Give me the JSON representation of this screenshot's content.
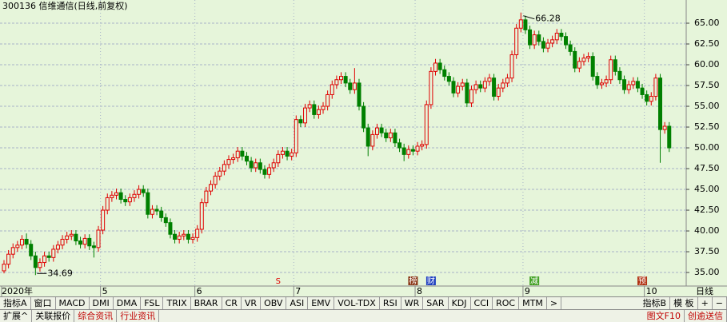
{
  "chart_data": {
    "type": "candlestick",
    "title": "300136 信维通信(日线,前复权)",
    "categories": [
      "2020年",
      null,
      null,
      null,
      null,
      null,
      null,
      null,
      null,
      null,
      null,
      null,
      null,
      null,
      null,
      null,
      null,
      null,
      null,
      null,
      null,
      null,
      "5",
      null,
      null,
      null,
      null,
      null,
      null,
      null,
      null,
      null,
      null,
      null,
      null,
      null,
      null,
      null,
      null,
      null,
      null,
      null,
      null,
      "6",
      null,
      null,
      null,
      null,
      null,
      null,
      null,
      null,
      null,
      null,
      null,
      null,
      null,
      null,
      null,
      null,
      null,
      null,
      null,
      null,
      null,
      "7",
      null,
      null,
      null,
      null,
      null,
      null,
      null,
      null,
      null,
      null,
      null,
      null,
      null,
      null,
      null,
      null,
      null,
      null,
      null,
      null,
      null,
      null,
      null,
      null,
      null,
      null,
      "8",
      null,
      null,
      null,
      null,
      null,
      null,
      null,
      null,
      null,
      null,
      null,
      null,
      null,
      null,
      null,
      null,
      null,
      null,
      null,
      null,
      null,
      null,
      null,
      "9",
      null,
      null,
      null,
      null,
      null,
      null,
      null,
      null,
      null,
      null,
      null,
      null,
      null,
      null,
      null,
      null,
      null,
      null,
      null,
      null,
      null,
      null,
      null,
      null,
      null,
      null,
      "10",
      null,
      null,
      null,
      null,
      null
    ],
    "open": [
      35.2,
      36.0,
      37.2,
      38.0,
      38.3,
      39.0,
      38.4,
      37.0,
      35.6,
      36.2,
      37.0,
      36.8,
      37.8,
      38.3,
      39.0,
      39.4,
      39.6,
      38.8,
      38.4,
      39.1,
      38.2,
      38.0,
      40.1,
      42.5,
      44.0,
      44.3,
      44.6,
      43.8,
      43.5,
      44.0,
      44.4,
      45.0,
      44.6,
      42.0,
      42.6,
      42.4,
      41.6,
      41.0,
      39.6,
      39.0,
      39.4,
      39.6,
      39.0,
      39.2,
      40.2,
      43.4,
      44.8,
      45.6,
      46.6,
      47.2,
      48.0,
      48.6,
      48.8,
      49.6,
      49.0,
      48.4,
      47.6,
      48.2,
      47.4,
      46.8,
      47.6,
      48.2,
      49.2,
      49.6,
      49.0,
      49.4,
      53.4,
      53.0,
      54.8,
      55.2,
      54.0,
      54.6,
      55.0,
      56.4,
      57.6,
      58.2,
      58.6,
      57.8,
      57.0,
      57.8,
      55.0,
      52.4,
      50.2,
      51.6,
      52.4,
      51.8,
      51.2,
      51.8,
      50.6,
      50.0,
      49.2,
      49.8,
      49.6,
      50.2,
      50.4,
      55.2,
      59.2,
      60.2,
      59.4,
      58.6,
      58.0,
      56.6,
      57.4,
      57.8,
      55.4,
      57.0,
      57.6,
      57.2,
      58.0,
      58.4,
      56.2,
      57.2,
      57.8,
      58.4,
      61.2,
      64.4,
      65.4,
      64.2,
      62.4,
      63.6,
      62.8,
      62.0,
      62.6,
      63.0,
      63.8,
      63.4,
      62.4,
      61.6,
      59.6,
      60.4,
      60.8,
      61.0,
      58.6,
      57.6,
      57.8,
      58.2,
      60.6,
      59.2,
      58.2,
      57.0,
      57.6,
      58.0,
      57.2,
      56.4,
      55.6,
      56.2,
      58.4,
      52.2,
      52.6
    ],
    "high": [
      36.5,
      37.7,
      38.5,
      38.8,
      39.5,
      39.7,
      38.9,
      37.5,
      36.7,
      37.5,
      37.5,
      38.3,
      38.8,
      39.5,
      39.9,
      40.1,
      40.1,
      39.3,
      39.6,
      39.6,
      38.7,
      40.6,
      43.0,
      44.5,
      44.8,
      45.1,
      45.1,
      44.3,
      44.5,
      44.9,
      45.5,
      45.5,
      45.1,
      43.1,
      43.1,
      42.9,
      42.1,
      41.5,
      40.1,
      39.9,
      40.1,
      40.1,
      39.7,
      40.7,
      43.9,
      45.3,
      46.1,
      47.1,
      47.7,
      48.5,
      49.1,
      49.3,
      50.1,
      50.1,
      49.5,
      48.9,
      48.7,
      48.7,
      47.9,
      48.1,
      48.7,
      49.7,
      50.1,
      50.1,
      49.9,
      53.9,
      53.9,
      55.3,
      55.7,
      55.7,
      55.1,
      55.5,
      56.9,
      58.1,
      58.7,
      59.1,
      59.1,
      58.3,
      59.6,
      58.3,
      55.5,
      52.9,
      52.1,
      52.9,
      52.9,
      52.3,
      52.3,
      52.3,
      51.1,
      50.5,
      50.3,
      50.3,
      50.7,
      50.9,
      55.7,
      59.7,
      60.7,
      60.7,
      59.9,
      59.1,
      58.5,
      57.9,
      58.3,
      58.3,
      57.5,
      58.1,
      58.1,
      58.5,
      58.9,
      58.9,
      57.7,
      58.3,
      58.9,
      61.7,
      64.9,
      66.28,
      65.9,
      64.7,
      64.1,
      64.1,
      63.3,
      63.1,
      63.5,
      64.3,
      64.3,
      63.9,
      62.9,
      62.1,
      60.9,
      61.3,
      61.5,
      61.5,
      59.1,
      58.3,
      58.7,
      61.1,
      61.1,
      59.7,
      58.7,
      58.1,
      58.5,
      58.5,
      57.7,
      56.9,
      56.7,
      58.9,
      58.9,
      53.1,
      53.1
    ],
    "low": [
      34.9,
      35.5,
      36.7,
      37.5,
      37.8,
      37.9,
      36.5,
      34.69,
      35.1,
      35.7,
      36.3,
      36.3,
      37.3,
      37.8,
      38.5,
      38.9,
      38.3,
      37.9,
      37.9,
      37.7,
      36.8,
      37.5,
      39.6,
      42.0,
      43.5,
      43.8,
      43.3,
      43.0,
      43.0,
      43.5,
      43.9,
      44.1,
      41.5,
      41.5,
      41.9,
      41.1,
      40.5,
      39.1,
      38.5,
      38.5,
      38.9,
      38.5,
      38.5,
      38.7,
      39.7,
      42.9,
      44.3,
      45.1,
      46.1,
      46.7,
      47.5,
      48.1,
      48.3,
      48.5,
      47.9,
      47.1,
      47.1,
      46.9,
      46.3,
      46.3,
      47.1,
      47.7,
      48.7,
      48.5,
      48.5,
      48.9,
      52.5,
      52.5,
      54.3,
      53.5,
      53.5,
      54.1,
      54.5,
      55.9,
      57.1,
      57.7,
      57.3,
      56.5,
      56.5,
      54.5,
      51.9,
      49.0,
      49.7,
      51.1,
      51.3,
      50.7,
      50.7,
      50.1,
      49.5,
      48.4,
      48.7,
      49.1,
      49.1,
      49.7,
      49.9,
      54.7,
      58.7,
      58.9,
      58.1,
      57.5,
      56.1,
      56.1,
      56.9,
      54.9,
      54.9,
      56.5,
      56.7,
      56.7,
      57.5,
      55.7,
      55.7,
      56.7,
      57.3,
      57.9,
      60.7,
      63.9,
      63.7,
      61.9,
      61.9,
      62.3,
      61.5,
      61.5,
      62.1,
      62.5,
      62.9,
      61.9,
      61.1,
      59.1,
      59.1,
      59.9,
      60.3,
      58.1,
      57.1,
      57.1,
      57.3,
      57.7,
      58.7,
      57.7,
      56.5,
      56.5,
      57.1,
      56.7,
      55.9,
      55.1,
      55.1,
      55.7,
      48.2,
      51.7,
      49.5
    ],
    "close": [
      36.0,
      37.2,
      38.0,
      38.3,
      39.0,
      38.4,
      37.0,
      35.6,
      36.2,
      37.0,
      36.8,
      37.8,
      38.3,
      39.0,
      39.4,
      39.6,
      38.8,
      38.4,
      39.1,
      38.2,
      38.0,
      40.1,
      42.5,
      44.0,
      44.3,
      44.6,
      43.8,
      43.5,
      44.0,
      44.4,
      45.0,
      44.6,
      42.0,
      42.6,
      42.4,
      41.6,
      41.0,
      39.6,
      39.0,
      39.4,
      39.6,
      39.0,
      39.2,
      40.2,
      43.4,
      44.8,
      45.6,
      46.6,
      47.2,
      48.0,
      48.6,
      48.8,
      49.6,
      49.0,
      48.4,
      47.6,
      48.2,
      47.4,
      46.8,
      47.6,
      48.2,
      49.2,
      49.6,
      49.0,
      49.4,
      53.4,
      53.0,
      54.8,
      55.2,
      54.0,
      54.6,
      55.0,
      56.4,
      57.6,
      58.2,
      58.6,
      57.8,
      57.0,
      57.8,
      55.0,
      52.4,
      50.2,
      51.6,
      52.4,
      51.8,
      51.2,
      51.8,
      50.6,
      50.0,
      49.2,
      49.8,
      49.6,
      50.2,
      50.4,
      55.2,
      59.2,
      60.2,
      59.4,
      58.6,
      58.0,
      56.6,
      57.4,
      57.8,
      55.4,
      57.0,
      57.6,
      57.2,
      58.0,
      58.4,
      56.2,
      57.2,
      57.8,
      58.4,
      61.2,
      64.4,
      65.4,
      64.2,
      62.4,
      63.6,
      62.8,
      62.0,
      62.6,
      63.0,
      63.8,
      63.4,
      62.4,
      61.6,
      59.6,
      60.4,
      60.8,
      61.0,
      58.6,
      57.6,
      57.8,
      58.2,
      60.6,
      59.2,
      58.2,
      57.0,
      57.6,
      58.0,
      57.2,
      56.4,
      55.6,
      56.2,
      58.4,
      52.2,
      52.6,
      50.0
    ],
    "up_color": "#e00000",
    "down_color": "#008000",
    "max_label": "66.28",
    "min_label": "34.69",
    "markers": [
      {
        "index": 61,
        "label": "S",
        "color": "#e00000"
      },
      {
        "index": 91,
        "label": "榜",
        "color": "#8b3a1a"
      },
      {
        "index": 95,
        "label": "财",
        "color": "#2040c0"
      },
      {
        "index": 118,
        "label": "减",
        "color": "#40a020"
      },
      {
        "index": 142,
        "label": "预",
        "color": "#b03010"
      }
    ],
    "ylim": [
      33.37,
      67.79
    ],
    "yticks": [
      {
        "value": 35,
        "label": "35.00"
      },
      {
        "value": 37.5,
        "label": "37.50"
      },
      {
        "value": 40,
        "label": "40.00"
      },
      {
        "value": 42.5,
        "label": "42.50"
      },
      {
        "value": 45,
        "label": "45.00"
      },
      {
        "value": 47.5,
        "label": "47.50"
      },
      {
        "value": 50,
        "label": "50.00"
      },
      {
        "value": 52.5,
        "label": "52.50"
      },
      {
        "value": 55,
        "label": "55.00"
      },
      {
        "value": 57.5,
        "label": "57.50"
      },
      {
        "value": 60,
        "label": "60.00"
      },
      {
        "value": 62.5,
        "label": "62.50"
      },
      {
        "value": 65,
        "label": "65.00"
      }
    ],
    "grid": true
  },
  "toolbar": {
    "period": "日线",
    "tabs": [
      "指标A",
      "窗口",
      "MACD",
      "DMI",
      "DMA",
      "FSL",
      "TRIX",
      "BRAR",
      "CR",
      "VR",
      "OBV",
      "ASI",
      "EMV",
      "VOL-TDX",
      "RSI",
      "WR",
      "SAR",
      "KDJ",
      "CCI",
      "ROC",
      "MTM",
      ">"
    ],
    "right": [
      "指标B",
      "模 板",
      "+",
      "−"
    ]
  },
  "bottom_bar": {
    "left": [
      "扩展^",
      "关联报价",
      "综合资讯",
      "行业资讯"
    ],
    "right": [
      "图文F10",
      "创逾送信"
    ]
  }
}
